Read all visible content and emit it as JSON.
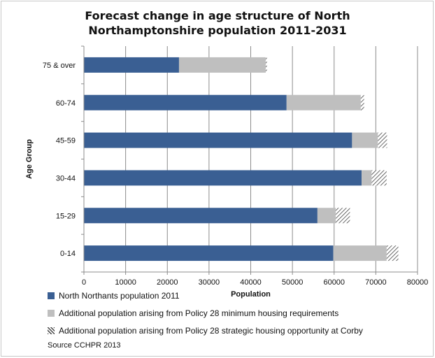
{
  "chart_data": {
    "type": "bar",
    "orientation": "horizontal",
    "stacked": true,
    "title_lines": [
      "Forecast change in age structure of North",
      "Northamptonshire population 2011-2031"
    ],
    "xlabel": "Population",
    "ylabel": "Age Group",
    "xlim": [
      0,
      80000
    ],
    "x_ticks": [
      0,
      10000,
      20000,
      30000,
      40000,
      50000,
      60000,
      70000,
      80000
    ],
    "grid": "vertical",
    "legend_position": "bottom",
    "categories": [
      "0-14",
      "15-29",
      "30-44",
      "45-59",
      "60-74",
      "75 & over"
    ],
    "series": [
      {
        "name": "North Northants population 2011",
        "color": "#3a5f93",
        "pattern": "solid",
        "values": [
          59800,
          56000,
          66600,
          64300,
          48600,
          22800
        ]
      },
      {
        "name": "Additional population arising from Policy 28 minimum housing requirements",
        "color": "#bfbfbf",
        "pattern": "solid",
        "values": [
          12800,
          4400,
          2400,
          6200,
          17800,
          20800
        ]
      },
      {
        "name": "Additional population arising from Policy 28 strategic housing opportunity at Corby",
        "color": "#555555",
        "pattern": "hatch",
        "values": [
          2800,
          3400,
          3600,
          2200,
          800,
          300
        ]
      }
    ]
  },
  "source": "Source CCHPR 2013"
}
